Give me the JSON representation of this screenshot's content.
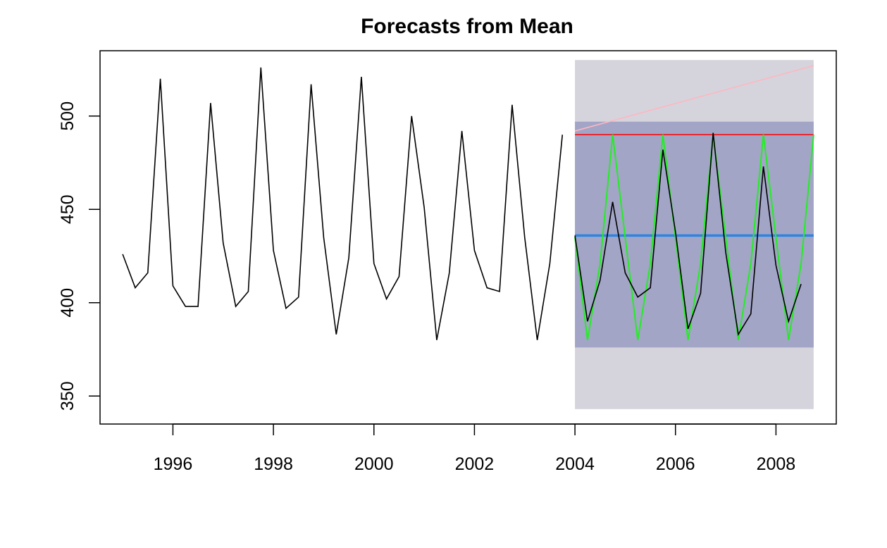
{
  "chart_data": {
    "type": "line",
    "title": "Forecasts from Mean",
    "xlabel": "",
    "ylabel": "",
    "xlim": [
      1994.55,
      2009.2
    ],
    "ylim": [
      335,
      535
    ],
    "x_ticks": [
      1996,
      1998,
      2000,
      2002,
      2004,
      2006,
      2008
    ],
    "x_tick_labels": [
      "1996",
      "1998",
      "2000",
      "2002",
      "2004",
      "2006",
      "2008"
    ],
    "y_ticks": [
      350,
      400,
      450,
      500
    ],
    "y_tick_labels": [
      "350",
      "400",
      "450",
      "500"
    ],
    "legend": "none",
    "grid": false,
    "history": {
      "name": "",
      "color": "#000000",
      "x": [
        1995.0,
        1995.25,
        1995.5,
        1995.75,
        1996.0,
        1996.25,
        1996.5,
        1996.75,
        1997.0,
        1997.25,
        1997.5,
        1997.75,
        1998.0,
        1998.25,
        1998.5,
        1998.75,
        1999.0,
        1999.25,
        1999.5,
        1999.75,
        2000.0,
        2000.25,
        2000.5,
        2000.75,
        2001.0,
        2001.25,
        2001.5,
        2001.75,
        2002.0,
        2002.25,
        2002.5,
        2002.75,
        2003.0,
        2003.25,
        2003.5,
        2003.75
      ],
      "values": [
        426,
        408,
        416,
        520,
        409,
        398,
        398,
        507,
        432,
        398,
        406,
        526,
        428,
        397,
        403,
        517,
        435,
        383,
        424,
        521,
        421,
        402,
        414,
        500,
        451,
        380,
        416,
        492,
        428,
        408,
        406,
        506,
        435,
        380,
        421,
        490
      ]
    },
    "forecast_bands": {
      "x_start": 2004.0,
      "x_end": 2008.75,
      "pi95": {
        "lower": 343,
        "upper": 530,
        "color": "#d5d4dc"
      },
      "pi80": {
        "lower": 376,
        "upper": 497,
        "color": "#a2a5c6"
      }
    },
    "forecast_mean": {
      "x_start": 2004.0,
      "x_end": 2008.75,
      "value": 436,
      "color": "#2f84e0"
    },
    "overlays": [
      {
        "name": "",
        "color": "#ff0000",
        "x": [
          2004.0,
          2008.75
        ],
        "values": [
          490,
          490
        ]
      },
      {
        "name": "",
        "color": "#ffb6c1",
        "x": [
          2004.0,
          2008.75
        ],
        "values": [
          492,
          527
        ]
      },
      {
        "name": "",
        "color": "#22ee22",
        "x": [
          2004.0,
          2004.25,
          2004.5,
          2004.75,
          2005.0,
          2005.25,
          2005.5,
          2005.75,
          2006.0,
          2006.25,
          2006.5,
          2006.75,
          2007.0,
          2007.25,
          2007.5,
          2007.75,
          2008.0,
          2008.25,
          2008.5,
          2008.75
        ],
        "values": [
          435,
          380,
          421,
          490,
          435,
          380,
          421,
          490,
          435,
          380,
          421,
          490,
          435,
          380,
          421,
          490,
          435,
          380,
          421,
          490
        ]
      },
      {
        "name": "",
        "color": "#000000",
        "x": [
          2004.0,
          2004.25,
          2004.5,
          2004.75,
          2005.0,
          2005.25,
          2005.5,
          2005.75,
          2006.0,
          2006.25,
          2006.5,
          2006.75,
          2007.0,
          2007.25,
          2007.5,
          2007.75,
          2008.0,
          2008.25,
          2008.5
        ],
        "values": [
          436,
          390,
          412,
          454,
          416,
          403,
          408,
          482,
          438,
          386,
          405,
          491,
          427,
          383,
          394,
          473,
          420,
          390,
          410
        ]
      }
    ]
  }
}
